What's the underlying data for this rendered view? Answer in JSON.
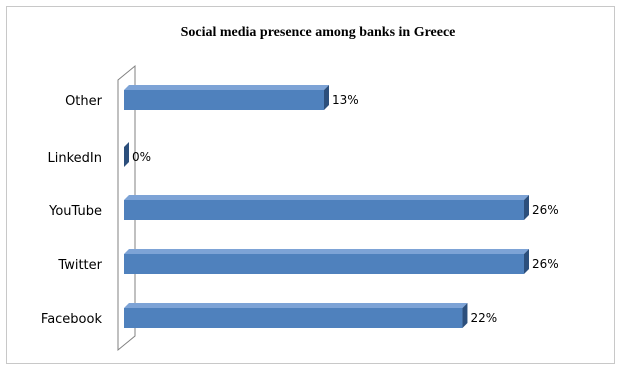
{
  "chart_data": {
    "type": "bar",
    "orientation": "horizontal",
    "style": "3d",
    "title": "Social media presence among banks in Greece",
    "categories": [
      "Other",
      "LinkedIn",
      "YouTube",
      "Twitter",
      "Facebook"
    ],
    "values": [
      13,
      0,
      26,
      26,
      22
    ],
    "value_labels": [
      "13%",
      "0%",
      "26%",
      "26%",
      "22%"
    ],
    "xlim": [
      0,
      26
    ],
    "grid": false,
    "legend": "none",
    "colors": {
      "bar_front": "#4f81bd",
      "bar_top": "#7da3d6",
      "bar_side": "#2c4f7c",
      "wall": "#808080"
    }
  }
}
